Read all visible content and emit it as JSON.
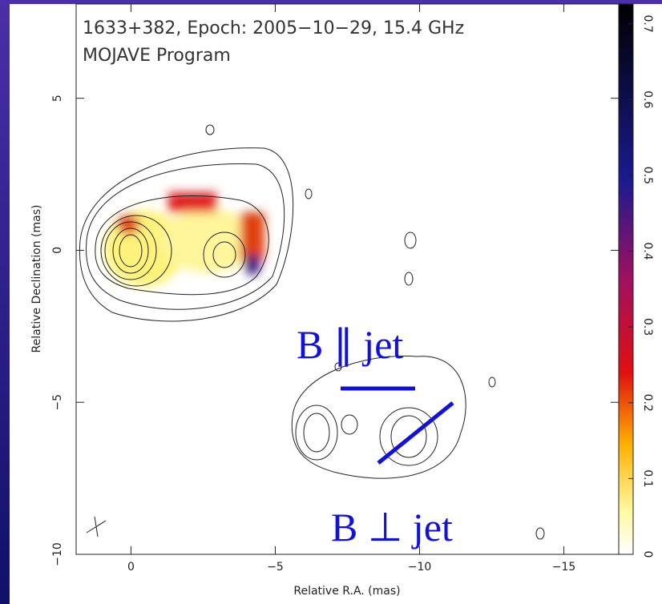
{
  "chart_data": {
    "type": "image",
    "title": "1633+382, Epoch: 2005−10−29, 15.4 GHz",
    "subtitle": "MOJAVE Program",
    "xlabel": "Relative R.A. (mas)",
    "ylabel": "Relative Declination (mas)",
    "xlim": [
      1.9,
      -16.9
    ],
    "ylim": [
      -10,
      8.1
    ],
    "xticks": [
      0,
      {
        "value": -5,
        "label": "−5"
      },
      {
        "value": -10,
        "label": "−10"
      },
      {
        "value": -15,
        "label": "−15"
      }
    ],
    "yticks": [
      {
        "value": -10,
        "label": "−10"
      },
      {
        "value": -5,
        "label": "−5"
      },
      0,
      5
    ],
    "colorbar": {
      "lim": [
        0,
        0.726
      ],
      "ticks": [
        0,
        0.1,
        0.2,
        0.3,
        0.4,
        0.5,
        0.6,
        0.7
      ]
    },
    "annotations": [
      "B ∥ jet",
      "B ⊥ jet"
    ]
  }
}
